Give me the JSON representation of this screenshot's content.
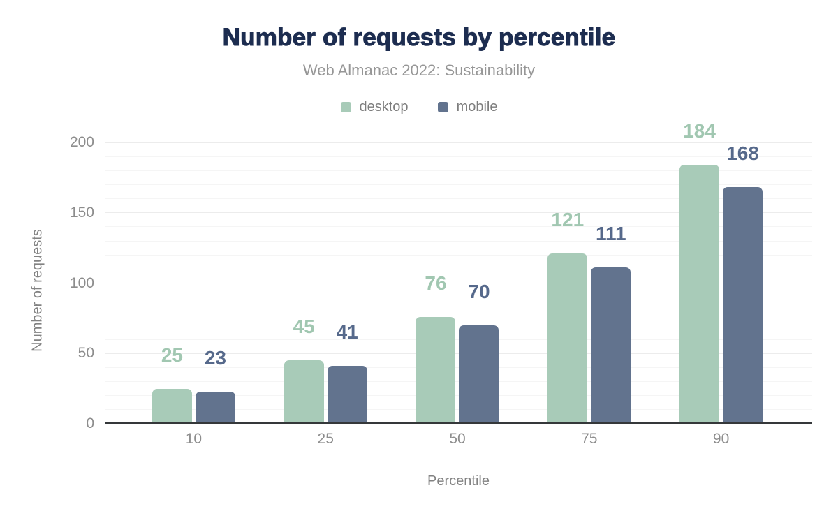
{
  "header": {
    "title": "Number of requests by percentile",
    "subtitle": "Web Almanac 2022: Sustainability"
  },
  "chart_data": {
    "type": "bar",
    "title": "Number of requests by percentile",
    "subtitle": "Web Almanac 2022: Sustainability",
    "categories": [
      "10",
      "25",
      "50",
      "75",
      "90"
    ],
    "series": [
      {
        "name": "desktop",
        "color": "#a8cbb8",
        "label_color": "#a1c7b1",
        "values": [
          25,
          45,
          76,
          121,
          184
        ]
      },
      {
        "name": "mobile",
        "color": "#62738e",
        "label_color": "#56698b",
        "values": [
          23,
          41,
          70,
          111,
          168
        ]
      }
    ],
    "xlabel": "Percentile",
    "ylabel": "Number of requests",
    "ylim": [
      0,
      200
    ],
    "yticks": [
      0,
      50,
      100,
      150,
      200
    ],
    "minor_grid_step": 10,
    "major_grid_step": 50,
    "grid": true,
    "data_labels": true,
    "legend_position": "top"
  },
  "colors": {
    "title": "#1d2d50",
    "subtitle": "#969696",
    "tick_label": "#8d8d8d",
    "axis_title": "#828282",
    "legend_label": "#7d7d7d",
    "grid_minor": "#f5f5f5",
    "grid_major": "#ececec",
    "baseline": "#35383a",
    "background": "#ffffff"
  }
}
